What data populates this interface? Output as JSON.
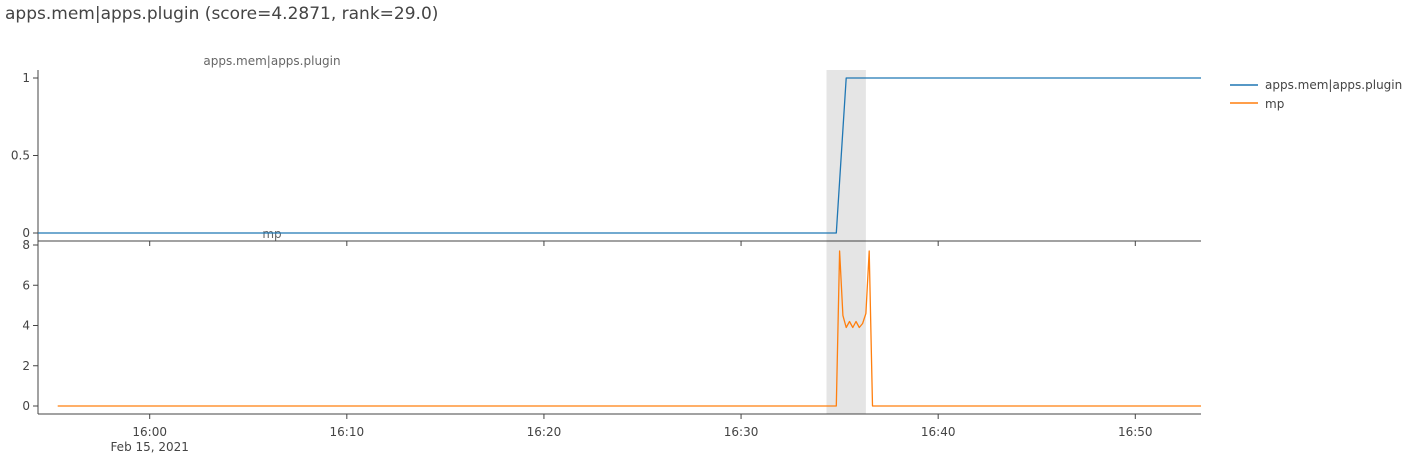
{
  "title": "apps.mem|apps.plugin (score=4.2871, rank=29.0)",
  "colors": {
    "series1": "#1f77b4",
    "series2": "#ff7f0e",
    "highlight": "#e5e5e5",
    "axis": "#444444"
  },
  "chart_data": {
    "type": "line",
    "x_date_label": "Feb 15, 2021",
    "x_ticks": [
      "16:00",
      "16:10",
      "16:20",
      "16:30",
      "16:40",
      "16:50"
    ],
    "xlim": [
      "15:54:20",
      "16:53:20"
    ],
    "highlight_range": [
      "16:34:20",
      "16:36:20"
    ],
    "legend": {
      "position": "right",
      "entries": [
        "apps.mem|apps.plugin",
        "mp"
      ]
    },
    "panels": [
      {
        "subtitle": "apps.mem|apps.plugin",
        "ylim": [
          0,
          1
        ],
        "y_ticks": [
          "0",
          "0.5",
          "1"
        ],
        "series": [
          {
            "name": "apps.mem|apps.plugin",
            "color": "#1f77b4",
            "x": [
              "15:54:20",
              "16:34:50",
              "16:35:20",
              "16:53:20"
            ],
            "y": [
              0,
              0,
              1,
              1
            ]
          }
        ]
      },
      {
        "subtitle": "mp",
        "ylim": [
          0,
          8
        ],
        "y_ticks": [
          "0",
          "2",
          "4",
          "6",
          "8"
        ],
        "series": [
          {
            "name": "mp",
            "color": "#ff7f0e",
            "x": [
              "15:55:20",
              "16:34:50",
              "16:35:00",
              "16:35:10",
              "16:35:20",
              "16:35:30",
              "16:35:40",
              "16:35:50",
              "16:36:00",
              "16:36:10",
              "16:36:20",
              "16:36:30",
              "16:36:40",
              "16:36:50",
              "16:53:20"
            ],
            "y": [
              0,
              0,
              7.7,
              4.5,
              3.9,
              4.2,
              3.9,
              4.2,
              3.9,
              4.1,
              4.6,
              7.7,
              0,
              0,
              0
            ]
          }
        ]
      }
    ]
  }
}
